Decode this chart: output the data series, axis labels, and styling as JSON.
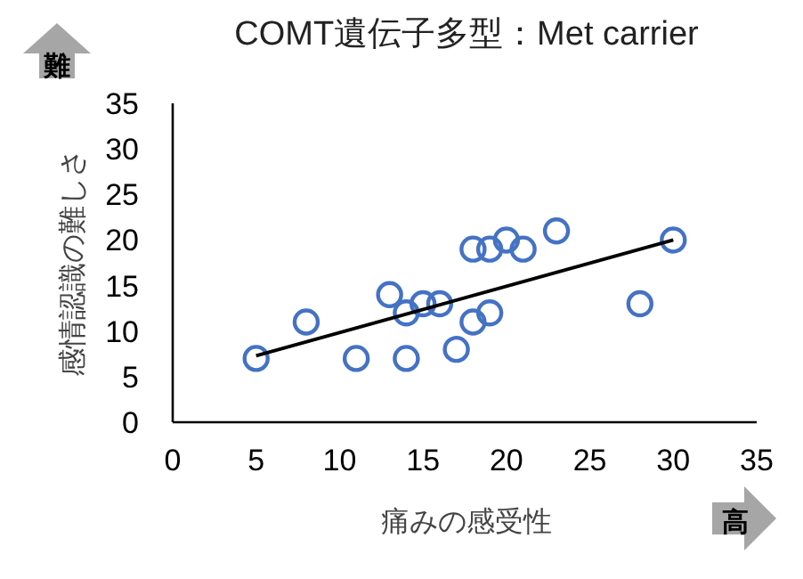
{
  "chart_data": {
    "type": "scatter",
    "title": "COMT遺伝子多型：Met carrier",
    "xlabel": "痛みの感受性",
    "ylabel": "感情認識の難しさ",
    "annotations": [
      "難",
      "高"
    ],
    "xlim": [
      0,
      35
    ],
    "ylim": [
      0,
      35
    ],
    "xticks": [
      0,
      5,
      10,
      15,
      20,
      25,
      30,
      35
    ],
    "yticks": [
      0,
      5,
      10,
      15,
      20,
      25,
      30,
      35
    ],
    "series": [
      {
        "color": "#4472c4",
        "marker": "circle",
        "x": [
          5,
          8,
          11,
          13,
          14,
          14,
          15,
          16,
          17,
          18,
          18,
          19,
          19,
          20,
          21,
          23,
          28,
          30
        ],
        "values": [
          7,
          11,
          7,
          14,
          12,
          7,
          13,
          13,
          8,
          11,
          19,
          19,
          12,
          20,
          19,
          21,
          13,
          20
        ]
      },
      {
        "type": "line",
        "color": "#000000",
        "marker": "none",
        "line_style": "solid",
        "x": [
          5,
          30
        ],
        "values": [
          7.3,
          20
        ]
      }
    ]
  }
}
